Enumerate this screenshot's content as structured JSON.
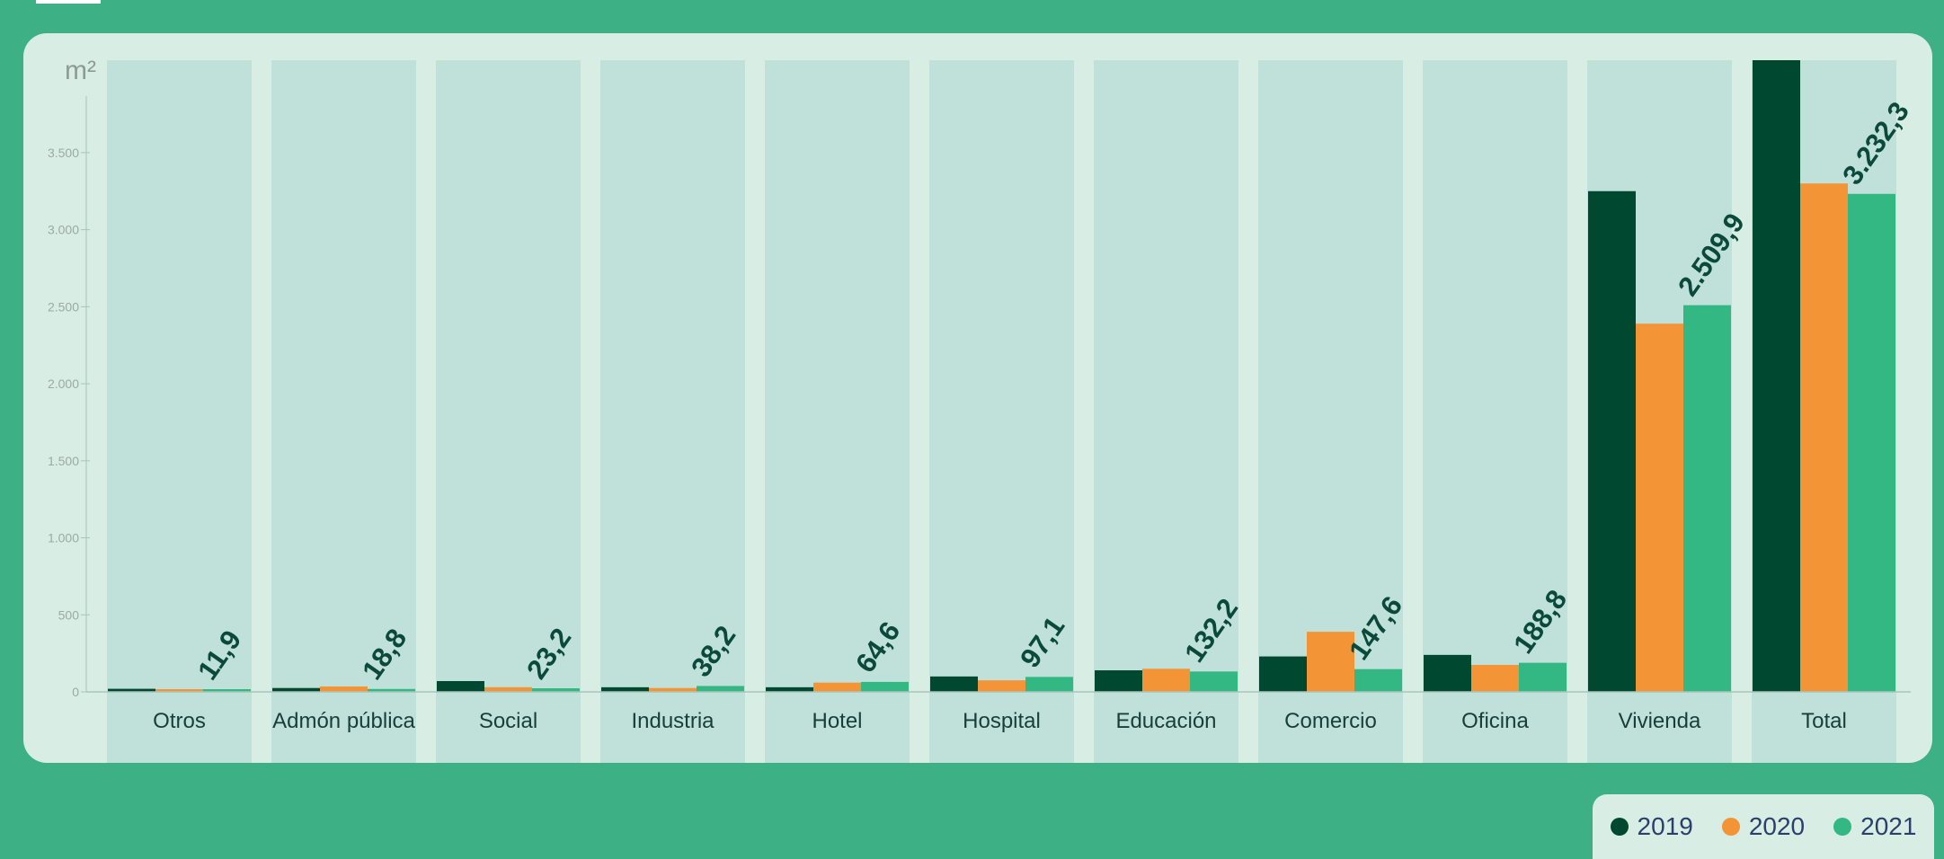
{
  "chart_data": {
    "type": "bar",
    "unit_label": "m²",
    "categories": [
      "Otros",
      "Admón pública",
      "Social",
      "Industria",
      "Hotel",
      "Hospital",
      "Educación",
      "Comercio",
      "Oficina",
      "Vivienda",
      "Total"
    ],
    "series": [
      {
        "name": "2019",
        "color": "#00482f",
        "values": [
          20,
          25,
          70,
          30,
          30,
          100,
          140,
          230,
          240,
          3250,
          4100
        ]
      },
      {
        "name": "2020",
        "color": "#f39436",
        "values": [
          15,
          35,
          30,
          25,
          60,
          75,
          150,
          390,
          175,
          2390,
          3300
        ]
      },
      {
        "name": "2021",
        "color": "#33b783",
        "values": [
          11.9,
          18.8,
          23.2,
          38.2,
          64.6,
          97.1,
          132.2,
          147.6,
          188.8,
          2509.9,
          3232.3
        ]
      }
    ],
    "data_labels": [
      "11,9",
      "18,8",
      "23,2",
      "38,2",
      "64,6",
      "97,1",
      "132,2",
      "147,6",
      "188,8",
      "2.509,9",
      "3.232,3"
    ],
    "y_ticks": [
      0,
      500,
      1000,
      1500,
      2000,
      2500,
      3000,
      3500
    ],
    "y_tick_labels": [
      "0",
      "500",
      "1.000",
      "1.500",
      "2.000",
      "2.500",
      "3.000",
      "3.500"
    ],
    "ylim": [
      0,
      4100
    ],
    "grid": false,
    "legend": "bottom-right"
  }
}
